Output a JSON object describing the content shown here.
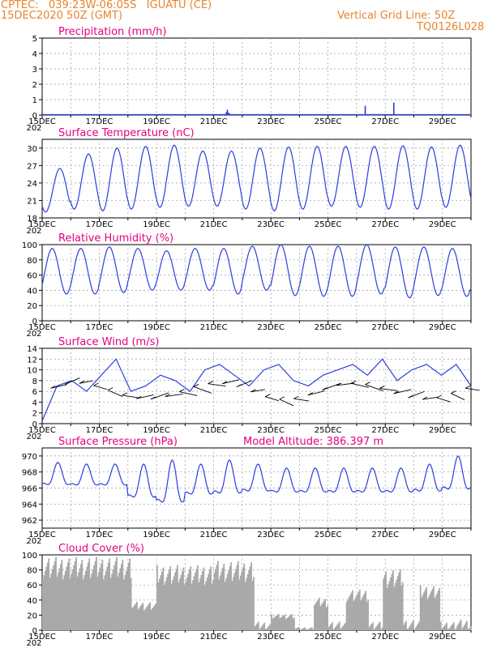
{
  "header": {
    "line1": "CPTEC:   039:23W-06:05S   IGUATU (CE)",
    "line2": "15DEC2020 50Z (GMT)",
    "right1": "Vertical Grid Line: 50Z",
    "right2": "TQ0126L028"
  },
  "colors": {
    "header": "#e8842c",
    "title": "#e6007e",
    "line": "#2a3fe0",
    "cloud": "#a9a9a9",
    "grid": "#999999"
  },
  "x_ticks": [
    "15DEC",
    "17DEC",
    "19DEC",
    "21DEC",
    "23DEC",
    "25DEC",
    "27DEC",
    "29DEC"
  ],
  "x_extra_label": "202",
  "chart_data": [
    {
      "type": "bar",
      "title": "Precipitation (mm/h)",
      "ylim": [
        0,
        5
      ],
      "yticks": [
        "0",
        "1",
        "2",
        "3",
        "4",
        "5"
      ],
      "x_range_days": [
        0,
        15
      ],
      "bars": [
        {
          "x": 6.1,
          "y": 0.05
        },
        {
          "x": 6.15,
          "y": 0.05
        },
        {
          "x": 6.42,
          "y": 0.08
        },
        {
          "x": 6.45,
          "y": 0.2
        },
        {
          "x": 6.48,
          "y": 0.35
        },
        {
          "x": 6.52,
          "y": 0.15
        },
        {
          "x": 6.55,
          "y": 0.1
        },
        {
          "x": 6.6,
          "y": 0.05
        },
        {
          "x": 6.8,
          "y": 0.05
        },
        {
          "x": 7.3,
          "y": 0.03
        },
        {
          "x": 11.3,
          "y": 0.6
        },
        {
          "x": 12.3,
          "y": 0.8
        }
      ]
    },
    {
      "type": "line",
      "title": "Surface Temperature (nC)",
      "ylim": [
        18,
        31.5
      ],
      "yticks": [
        "18",
        "21",
        "24",
        "27",
        "30"
      ],
      "series": [
        {
          "daily_max": [
            26.5,
            29,
            30,
            30.3,
            30.5,
            29.5,
            29.5,
            30,
            30.2,
            30.3,
            30.3,
            30.3,
            30.4,
            30.2,
            30.5,
            30.5
          ],
          "daily_min": [
            19,
            19.5,
            19.2,
            19.5,
            19.8,
            20,
            20,
            19.5,
            19.2,
            19.5,
            20,
            19.8,
            19.5,
            19.5,
            19.8,
            19.8
          ]
        }
      ]
    },
    {
      "type": "line",
      "title": "Relative Humidity (%)",
      "ylim": [
        0,
        100
      ],
      "yticks": [
        "0",
        "20",
        "40",
        "60",
        "80",
        "100"
      ],
      "series": [
        {
          "daily_max": [
            95,
            95,
            97,
            95,
            92,
            95,
            95,
            98,
            100,
            98,
            98,
            100,
            97,
            97,
            95,
            93
          ],
          "daily_min": [
            35,
            35,
            37,
            40,
            40,
            40,
            35,
            40,
            33,
            32,
            32,
            35,
            30,
            33,
            32,
            30
          ]
        }
      ]
    },
    {
      "type": "line",
      "title": "Surface Wind (m/s)",
      "ylim": [
        0,
        14
      ],
      "yticks": [
        "0",
        "2",
        "4",
        "6",
        "8",
        "10",
        "12",
        "14"
      ],
      "series": [
        {
          "values_sample": [
            0.5,
            7,
            8,
            6,
            9,
            12,
            6,
            7,
            9,
            8,
            6,
            10,
            11,
            9,
            7,
            10,
            11,
            8,
            7,
            9,
            10,
            11,
            9,
            12,
            8,
            10,
            11,
            9,
            11,
            7
          ]
        }
      ]
    },
    {
      "type": "line",
      "title": "Surface Pressure (hPa)",
      "subtitle": "Model Altitude: 386.397 m",
      "ylim": [
        961,
        971
      ],
      "yticks": [
        "962",
        "964",
        "966",
        "968",
        "970"
      ],
      "series": [
        {
          "daily_max": [
            969.2,
            969,
            969,
            969,
            969.5,
            969,
            969.5,
            969,
            968.5,
            968.5,
            968.5,
            968.5,
            968.5,
            969,
            970,
            970
          ],
          "daily_min": [
            965.5,
            965.5,
            965.5,
            963.5,
            962.5,
            964,
            964,
            964.5,
            964.5,
            964.5,
            964.5,
            964.5,
            964.5,
            964.5,
            964.5,
            964.5
          ]
        }
      ]
    },
    {
      "type": "area",
      "title": "Cloud Cover (%)",
      "ylim": [
        0,
        100
      ],
      "yticks": [
        "0",
        "20",
        "40",
        "60",
        "80",
        "100"
      ],
      "series": [
        {
          "segments": [
            {
              "from": 0.0,
              "to": 3.1,
              "level": 90
            },
            {
              "from": 3.1,
              "to": 4.0,
              "level": 35
            },
            {
              "from": 4.0,
              "to": 6.0,
              "level": 80
            },
            {
              "from": 6.0,
              "to": 7.4,
              "level": 85
            },
            {
              "from": 7.4,
              "to": 8.0,
              "level": 8
            },
            {
              "from": 8.0,
              "to": 8.8,
              "level": 20
            },
            {
              "from": 8.8,
              "to": 9.5,
              "level": 3
            },
            {
              "from": 9.5,
              "to": 10.0,
              "level": 40
            },
            {
              "from": 10.0,
              "to": 10.6,
              "level": 8
            },
            {
              "from": 10.6,
              "to": 11.4,
              "level": 50
            },
            {
              "from": 11.4,
              "to": 11.9,
              "level": 8
            },
            {
              "from": 11.9,
              "to": 12.6,
              "level": 75
            },
            {
              "from": 12.6,
              "to": 13.2,
              "level": 10
            },
            {
              "from": 13.2,
              "to": 13.9,
              "level": 55
            },
            {
              "from": 13.9,
              "to": 14.5,
              "level": 8
            },
            {
              "from": 14.5,
              "to": 15.0,
              "level": 10
            }
          ]
        }
      ]
    }
  ]
}
